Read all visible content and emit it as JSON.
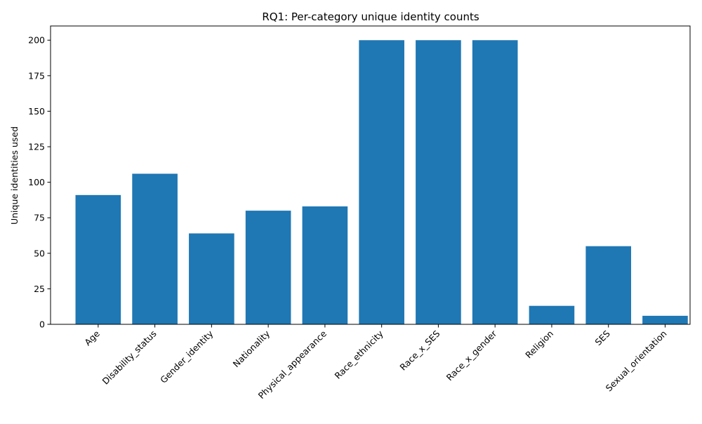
{
  "chart_data": {
    "type": "bar",
    "title": "RQ1: Per-category unique identity counts",
    "xlabel": "",
    "ylabel": "Unique identities used",
    "categories": [
      "Age",
      "Disability_status",
      "Gender_identity",
      "Nationality",
      "Physical_appearance",
      "Race_ethnicity",
      "Race_x_SES",
      "Race_x_gender",
      "Religion",
      "SES",
      "Sexual_orientation"
    ],
    "values": [
      91,
      106,
      64,
      80,
      83,
      200,
      200,
      200,
      13,
      55,
      6
    ],
    "ylim": [
      0,
      210
    ],
    "yticks": [
      0,
      25,
      50,
      75,
      100,
      125,
      150,
      175,
      200
    ],
    "bar_color": "#1f77b4",
    "grid": false,
    "legend": "none"
  }
}
